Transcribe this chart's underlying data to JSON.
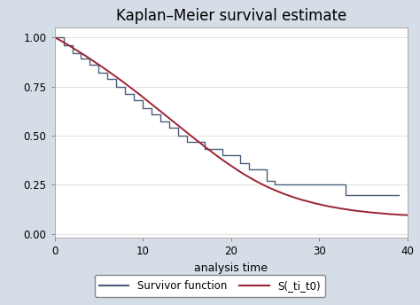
{
  "title": "Kaplan–Meier survival estimate",
  "xlabel": "analysis time",
  "xlim": [
    0,
    40
  ],
  "ylim": [
    -0.02,
    1.05
  ],
  "yticks": [
    0.0,
    0.25,
    0.5,
    0.75,
    1.0
  ],
  "xticks": [
    0,
    10,
    20,
    30,
    40
  ],
  "bg_color": "#d5dde6",
  "plot_bg_color": "#ffffff",
  "km_color": "#4a5d7a",
  "smooth_color": "#9b2335",
  "km_steps_x": [
    0,
    0,
    1,
    1,
    2,
    2,
    3,
    3,
    4,
    4,
    5,
    5,
    6,
    6,
    7,
    7,
    8,
    8,
    9,
    9,
    10,
    10,
    11,
    11,
    12,
    12,
    13,
    13,
    14,
    14,
    15,
    15,
    17,
    17,
    19,
    19,
    21,
    21,
    22,
    22,
    24,
    24,
    25,
    25,
    27,
    27,
    30,
    30,
    33,
    33,
    34,
    34,
    39
  ],
  "km_steps_y": [
    1.0,
    1.0,
    1.0,
    0.96,
    0.96,
    0.92,
    0.92,
    0.89,
    0.89,
    0.86,
    0.86,
    0.82,
    0.82,
    0.79,
    0.79,
    0.75,
    0.75,
    0.71,
    0.71,
    0.68,
    0.68,
    0.64,
    0.64,
    0.61,
    0.61,
    0.57,
    0.57,
    0.54,
    0.54,
    0.5,
    0.5,
    0.47,
    0.47,
    0.43,
    0.43,
    0.4,
    0.4,
    0.36,
    0.36,
    0.33,
    0.33,
    0.27,
    0.27,
    0.25,
    0.25,
    0.25,
    0.25,
    0.25,
    0.25,
    0.2,
    0.2,
    0.2,
    0.2
  ],
  "smooth_x": [
    0,
    0.5,
    1,
    1.5,
    2,
    2.5,
    3,
    3.5,
    4,
    4.5,
    5,
    5.5,
    6,
    6.5,
    7,
    7.5,
    8,
    8.5,
    9,
    9.5,
    10,
    10.5,
    11,
    11.5,
    12,
    12.5,
    13,
    13.5,
    14,
    14.5,
    15,
    15.5,
    16,
    16.5,
    17,
    17.5,
    18,
    18.5,
    19,
    19.5,
    20,
    20.5,
    21,
    21.5,
    22,
    22.5,
    23,
    23.5,
    24,
    24.5,
    25,
    25.5,
    26,
    26.5,
    27,
    27.5,
    28,
    28.5,
    29,
    29.5,
    30,
    30.5,
    31,
    31.5,
    32,
    32.5,
    33,
    33.5,
    34,
    34.5,
    35,
    35.5,
    36,
    36.5,
    37,
    37.5,
    38,
    38.5,
    39,
    39.5,
    40
  ],
  "smooth_y": [
    1.0,
    0.988,
    0.975,
    0.962,
    0.948,
    0.934,
    0.92,
    0.906,
    0.891,
    0.876,
    0.861,
    0.846,
    0.83,
    0.814,
    0.798,
    0.782,
    0.765,
    0.748,
    0.731,
    0.714,
    0.696,
    0.678,
    0.66,
    0.642,
    0.624,
    0.606,
    0.588,
    0.57,
    0.552,
    0.534,
    0.516,
    0.498,
    0.48,
    0.463,
    0.445,
    0.428,
    0.411,
    0.394,
    0.378,
    0.362,
    0.347,
    0.332,
    0.317,
    0.303,
    0.29,
    0.277,
    0.265,
    0.253,
    0.242,
    0.232,
    0.222,
    0.213,
    0.204,
    0.196,
    0.188,
    0.181,
    0.174,
    0.168,
    0.162,
    0.156,
    0.151,
    0.146,
    0.141,
    0.137,
    0.133,
    0.129,
    0.126,
    0.122,
    0.119,
    0.116,
    0.114,
    0.111,
    0.109,
    0.107,
    0.105,
    0.103,
    0.101,
    0.1,
    0.098,
    0.097,
    0.096
  ],
  "legend_km_label": "Survivor function",
  "legend_smooth_label": "S(_ti_t0)",
  "title_fontsize": 12,
  "label_fontsize": 9,
  "tick_fontsize": 8.5
}
